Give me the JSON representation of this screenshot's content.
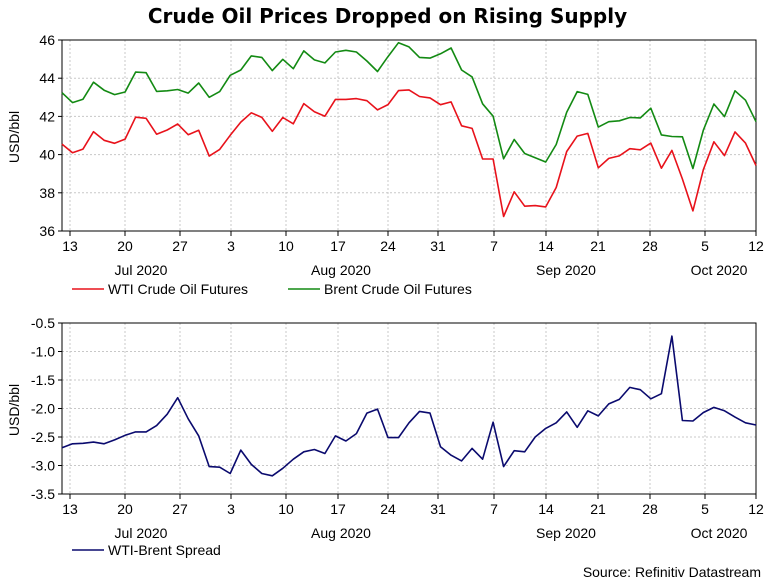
{
  "title": "Crude Oil Prices Dropped on Rising Supply",
  "source": "Source: Refinitiv Datastream",
  "colors": {
    "wti": "#e8121b",
    "brent": "#138a13",
    "spread": "#0a0a6e",
    "grid": "#c8c8c8"
  },
  "chart_data": [
    {
      "type": "line",
      "title": "Crude Oil Prices Dropped on Rising Supply",
      "ylabel": "USD/bbl",
      "xlabel": "",
      "ylim": [
        36,
        46
      ],
      "yticks": [
        "46",
        "44",
        "42",
        "40",
        "38",
        "36"
      ],
      "x_tick_labels": [
        "13",
        "20",
        "27",
        "3",
        "10",
        "17",
        "24",
        "31",
        "7",
        "14",
        "21",
        "28",
        "5",
        "12"
      ],
      "x_month_labels": [
        "Jul 2020",
        "Aug 2020",
        "Sep 2020",
        "Oct 2020"
      ],
      "grid": true,
      "legend_position": "bottom",
      "dates": [
        "Jul 10",
        "Jul 13",
        "Jul 14",
        "Jul 15",
        "Jul 16",
        "Jul 17",
        "Jul 20",
        "Jul 21",
        "Jul 22",
        "Jul 23",
        "Jul 24",
        "Jul 27",
        "Jul 28",
        "Jul 29",
        "Jul 30",
        "Jul 31",
        "Aug 3",
        "Aug 4",
        "Aug 5",
        "Aug 6",
        "Aug 7",
        "Aug 10",
        "Aug 11",
        "Aug 12",
        "Aug 13",
        "Aug 14",
        "Aug 17",
        "Aug 18",
        "Aug 19",
        "Aug 20",
        "Aug 21",
        "Aug 24",
        "Aug 25",
        "Aug 26",
        "Aug 27",
        "Aug 28",
        "Aug 31",
        "Sep 1",
        "Sep 2",
        "Sep 3",
        "Sep 4",
        "Sep 7",
        "Sep 8",
        "Sep 9",
        "Sep 10",
        "Sep 11",
        "Sep 14",
        "Sep 15",
        "Sep 16",
        "Sep 17",
        "Sep 18",
        "Sep 21",
        "Sep 22",
        "Sep 23",
        "Sep 24",
        "Sep 25",
        "Sep 28",
        "Sep 29",
        "Sep 30",
        "Oct 1",
        "Oct 2",
        "Oct 5",
        "Oct 6",
        "Oct 7",
        "Oct 8",
        "Oct 9",
        "Oct 12"
      ],
      "series": [
        {
          "name": "WTI Crude Oil Futures",
          "color": "#e8121b",
          "values": [
            40.55,
            40.1,
            40.29,
            41.2,
            40.75,
            40.59,
            40.81,
            41.96,
            41.9,
            41.07,
            41.29,
            41.6,
            41.04,
            41.27,
            39.92,
            40.27,
            41.01,
            41.7,
            42.19,
            41.95,
            41.22,
            41.94,
            41.61,
            42.67,
            42.24,
            42.01,
            42.89,
            42.89,
            42.93,
            42.82,
            42.34,
            42.62,
            43.35,
            43.39,
            43.04,
            42.97,
            42.61,
            42.76,
            41.51,
            41.37,
            39.77,
            39.77,
            36.76,
            38.05,
            37.3,
            37.33,
            37.26,
            38.28,
            40.16,
            40.97,
            41.11,
            39.31,
            39.8,
            39.93,
            40.31,
            40.25,
            40.6,
            39.29,
            40.22,
            38.72,
            37.05,
            39.22,
            40.67,
            39.95,
            41.19,
            40.6,
            39.43
          ]
        },
        {
          "name": "Brent Crude Oil Futures",
          "color": "#138a13",
          "values": [
            43.24,
            42.72,
            42.9,
            43.79,
            43.37,
            43.14,
            43.28,
            44.32,
            44.29,
            43.31,
            43.34,
            43.41,
            43.22,
            43.75,
            43.0,
            43.3,
            44.15,
            44.43,
            45.17,
            45.09,
            44.4,
            44.99,
            44.5,
            45.43,
            44.96,
            44.8,
            45.37,
            45.46,
            45.37,
            44.9,
            44.35,
            45.13,
            45.86,
            45.64,
            45.09,
            45.05,
            45.28,
            45.58,
            44.43,
            44.07,
            42.66,
            42.01,
            39.78,
            40.79,
            40.06,
            39.83,
            39.61,
            40.53,
            42.22,
            43.3,
            43.15,
            41.44,
            41.72,
            41.77,
            41.94,
            41.92,
            42.43,
            41.03,
            40.95,
            40.93,
            39.27,
            41.29,
            42.65,
            41.99,
            43.34,
            42.85,
            41.72
          ]
        }
      ]
    },
    {
      "type": "line",
      "title": "",
      "ylabel": "USD/bbl",
      "xlabel": "",
      "ylim": [
        -3.5,
        -0.5
      ],
      "yticks": [
        "-0.5",
        "-1.0",
        "-1.5",
        "-2.0",
        "-2.5",
        "-3.0",
        "-3.5"
      ],
      "x_tick_labels": [
        "13",
        "20",
        "27",
        "3",
        "10",
        "17",
        "24",
        "31",
        "7",
        "14",
        "21",
        "28",
        "5",
        "12"
      ],
      "x_month_labels": [
        "Jul 2020",
        "Aug 2020",
        "Sep 2020",
        "Oct 2020"
      ],
      "grid": true,
      "legend_position": "bottom",
      "series": [
        {
          "name": "WTI-Brent Spread",
          "color": "#0a0a6e",
          "values": [
            -2.69,
            -2.62,
            -2.61,
            -2.59,
            -2.62,
            -2.55,
            -2.47,
            -2.41,
            -2.41,
            -2.3,
            -2.1,
            -1.81,
            -2.18,
            -2.48,
            -3.02,
            -3.03,
            -3.14,
            -2.73,
            -2.98,
            -3.14,
            -3.18,
            -3.05,
            -2.89,
            -2.76,
            -2.72,
            -2.79,
            -2.48,
            -2.57,
            -2.44,
            -2.08,
            -2.01,
            -2.51,
            -2.51,
            -2.25,
            -2.05,
            -2.08,
            -2.67,
            -2.82,
            -2.92,
            -2.7,
            -2.89,
            -2.24,
            -3.02,
            -2.74,
            -2.76,
            -2.5,
            -2.35,
            -2.25,
            -2.06,
            -2.33,
            -2.04,
            -2.13,
            -1.92,
            -1.84,
            -1.63,
            -1.67,
            -1.83,
            -1.74,
            -0.73,
            -2.21,
            -2.22,
            -2.07,
            -1.98,
            -2.04,
            -2.15,
            -2.25,
            -2.29
          ]
        }
      ]
    }
  ]
}
